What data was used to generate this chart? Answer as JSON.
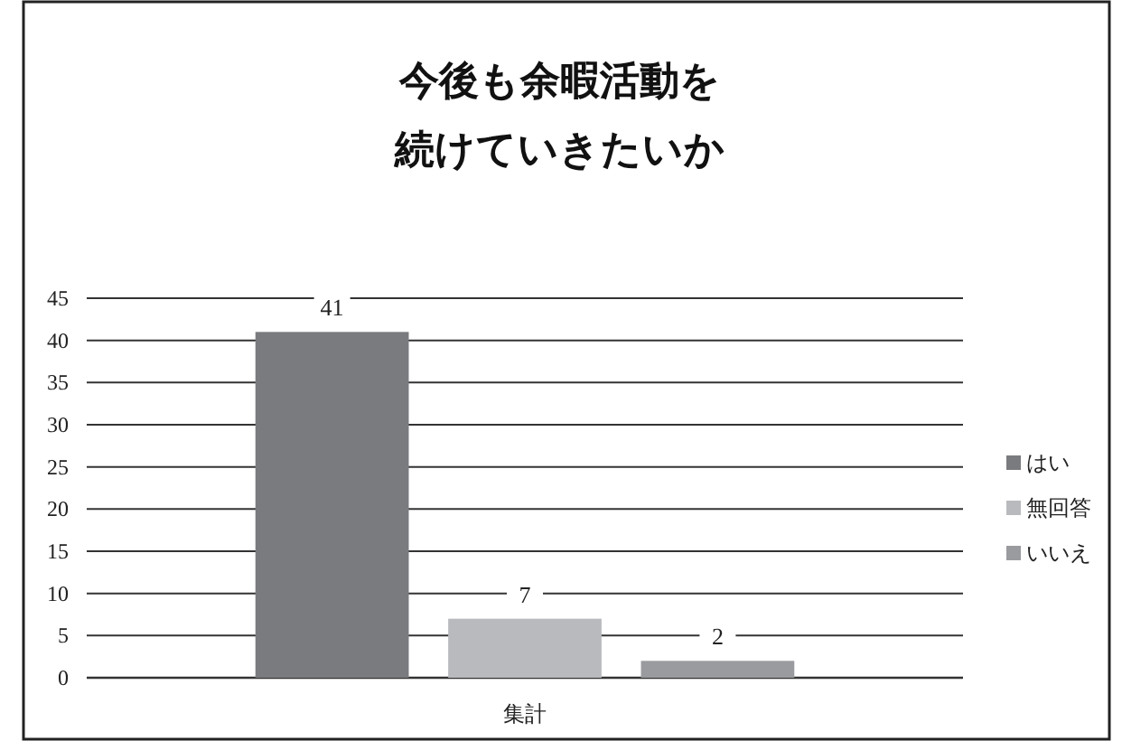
{
  "chart_data": {
    "type": "bar",
    "title": "今後も余暇活動を",
    "subtitle": "続けていきたいか",
    "categories": [
      "集計"
    ],
    "series": [
      {
        "name": "はい",
        "color": "#7a7b7f",
        "values": [
          41
        ]
      },
      {
        "name": "無回答",
        "color": "#b9babd",
        "values": [
          7
        ]
      },
      {
        "name": "いいえ",
        "color": "#9a9b9f",
        "values": [
          2
        ]
      }
    ],
    "ylim": [
      0,
      45
    ],
    "yticks": [
      0,
      5,
      10,
      15,
      20,
      25,
      30,
      35,
      40,
      45
    ],
    "grid": "y",
    "legend": "right",
    "data_labels": true
  }
}
